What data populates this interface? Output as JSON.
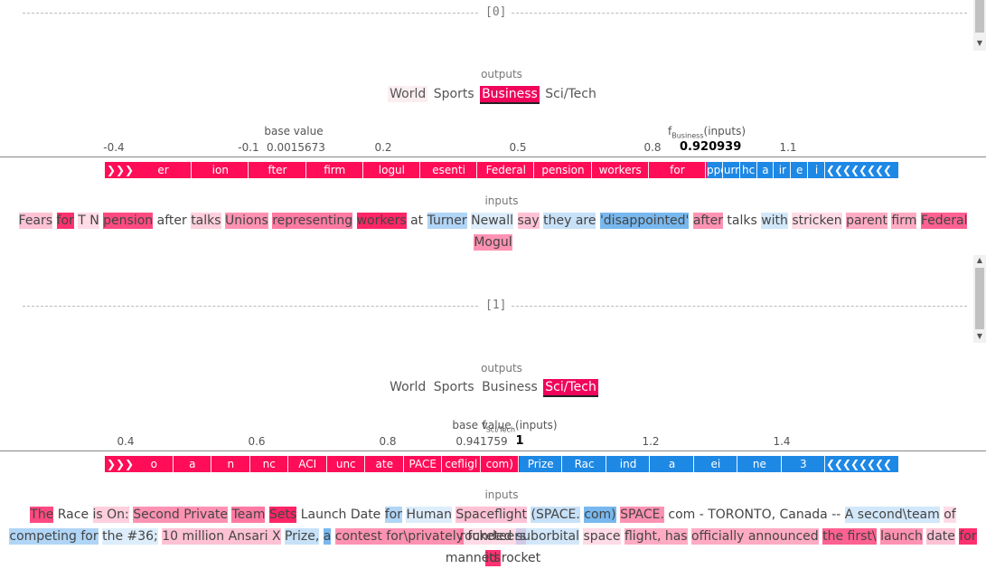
{
  "panels": [
    {
      "index_label": "[0]",
      "outputs_label": "outputs",
      "outputs": [
        "World",
        "Sports",
        "Business",
        "Sci/Tech"
      ],
      "active_output": "Business",
      "base_value_label": "base value",
      "base_value": "0.0015673",
      "f_label": "f",
      "f_sub": "Business",
      "f_suffix": "(inputs)",
      "f_value": "0.920939",
      "ticks": [
        "-0.4",
        "-0.1",
        "0.2",
        "0.5",
        "0.8",
        "1.1"
      ],
      "red_segments": [
        "er",
        "ion",
        "fter",
        "firm",
        "logul",
        "esenti",
        "Federal",
        "pension",
        "workers",
        "for"
      ],
      "blue_segments": [
        "ppoi",
        "urn",
        "hc",
        "a",
        "ir",
        "e",
        "i"
      ],
      "inputs_label": "inputs",
      "tokens": [
        "Fears",
        "for",
        "T N",
        "pension",
        "after",
        "talks",
        "Unions",
        "representing",
        "workers",
        "at",
        "Turner",
        "Newall",
        "say",
        "they are",
        "'disappointed'",
        "after",
        "talks",
        "with",
        "stricken",
        "parent",
        "firm",
        "Federal",
        "Mogul"
      ]
    },
    {
      "index_label": "[1]",
      "outputs_label": "outputs",
      "outputs": [
        "World",
        "Sports",
        "Business",
        "Sci/Tech"
      ],
      "active_output": "Sci/Tech",
      "base_value_label": "base value",
      "base_value": "0.941759",
      "f_label": "f",
      "f_sub": "Sci/Tech",
      "f_suffix": "(inputs)",
      "f_value": "1",
      "ticks": [
        "0.4",
        "0.6",
        "0.8",
        "1",
        "1.2",
        "1.4"
      ],
      "red_segments": [
        "o",
        "a",
        "n",
        "nc",
        "ACI",
        "unc",
        "ate",
        "PACE",
        "cefligl",
        "com)"
      ],
      "blue_segments": [
        "Prize",
        "Rac",
        "ind",
        "a",
        "ei",
        "ne",
        "3"
      ],
      "inputs_label": "inputs",
      "tokens_line1": [
        "The",
        "Race",
        "is On:",
        "Second Private",
        "Team",
        "Sets",
        "Launch Date",
        "for",
        "Human",
        "Spaceflight",
        "(SPACE.",
        "com)",
        "SPACE.",
        "com - TORONTO, Canada --",
        "A second\\team",
        "of rocketeers"
      ],
      "tokens_line2": [
        "competing for",
        "the #36;",
        "10 million Ansari X",
        "Prize,",
        "a",
        "contest for\\privately",
        "funded",
        "suborbital",
        "space",
        "flight, has",
        "officially announced",
        "the first\\",
        "launch",
        "date",
        "for its"
      ],
      "tokens_line3": [
        "manned rocket"
      ]
    }
  ],
  "colors": {
    "positive": "#ff0d57",
    "negative": "#1e88e5"
  }
}
